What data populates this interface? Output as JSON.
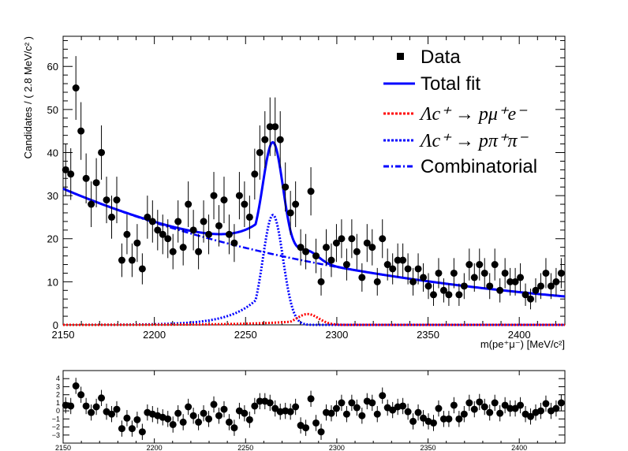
{
  "chart_data": [
    {
      "type": "scatter",
      "title": "",
      "xlabel": "m(pe⁺μ⁻) [MeV/c²]",
      "ylabel": "Candidates / ( 2.8 MeV/c² )",
      "xlim": [
        2150,
        2425
      ],
      "ylim": [
        0,
        67
      ],
      "x_ticks": [
        2150,
        2200,
        2250,
        2300,
        2350,
        2400
      ],
      "y_ticks": [
        0,
        10,
        20,
        30,
        40,
        50,
        60
      ],
      "legend": {
        "position": "top-right",
        "entries": [
          {
            "label": "Data",
            "style": "marker",
            "color": "#000000"
          },
          {
            "label": "Total fit",
            "style": "solid",
            "color": "#0000ff"
          },
          {
            "label": "Λc⁺ → pμ⁺e⁻",
            "style": "dotted",
            "color": "#ff0000"
          },
          {
            "label": "Λc⁺ → pπ⁺π⁻",
            "style": "dotted",
            "color": "#0000ff"
          },
          {
            "label": "Combinatorial",
            "style": "dashdot",
            "color": "#0000ff"
          }
        ]
      },
      "data_points": {
        "x": [
          2151.4,
          2154.2,
          2157.0,
          2159.8,
          2162.6,
          2165.4,
          2168.2,
          2171.0,
          2173.8,
          2176.6,
          2179.4,
          2182.2,
          2185.0,
          2187.8,
          2190.6,
          2193.4,
          2196.2,
          2199.0,
          2201.8,
          2204.6,
          2207.4,
          2210.2,
          2213.0,
          2215.8,
          2218.6,
          2221.4,
          2224.2,
          2227.0,
          2229.8,
          2232.6,
          2235.4,
          2238.2,
          2241.0,
          2243.8,
          2246.6,
          2249.4,
          2252.2,
          2255.0,
          2257.8,
          2260.6,
          2263.4,
          2266.2,
          2269.0,
          2271.8,
          2274.6,
          2277.4,
          2280.2,
          2283.0,
          2285.8,
          2288.6,
          2291.4,
          2294.2,
          2297.0,
          2299.8,
          2302.6,
          2305.4,
          2308.2,
          2311.0,
          2313.8,
          2316.6,
          2319.4,
          2322.2,
          2325.0,
          2327.8,
          2330.6,
          2333.4,
          2336.2,
          2339.0,
          2341.8,
          2344.6,
          2347.4,
          2350.2,
          2353.0,
          2355.8,
          2358.6,
          2361.4,
          2364.2,
          2367.0,
          2369.8,
          2372.6,
          2375.4,
          2378.2,
          2381.0,
          2383.8,
          2386.6,
          2389.4,
          2392.2,
          2395.0,
          2397.8,
          2400.6,
          2403.4,
          2406.2,
          2409.0,
          2411.8,
          2414.6,
          2417.4,
          2420.2,
          2423.0
        ],
        "y": [
          36,
          35,
          55,
          45,
          34,
          28,
          33,
          40,
          29,
          25,
          29,
          15,
          21,
          15,
          19,
          13,
          25,
          24,
          22,
          21,
          20,
          17,
          24,
          18,
          28,
          22,
          17,
          24,
          21,
          30,
          23,
          29,
          21,
          19,
          30,
          28,
          25,
          35,
          40,
          43,
          46,
          46,
          43,
          32,
          26,
          28,
          18,
          17,
          31,
          16,
          10,
          18,
          15,
          19,
          20,
          14,
          20,
          17,
          11,
          19,
          18,
          10,
          20,
          14,
          13,
          15,
          15,
          13,
          10,
          13,
          11,
          9,
          7,
          12,
          8,
          7,
          12,
          7,
          9,
          14,
          11,
          14,
          12,
          9,
          14,
          8,
          12,
          10,
          10,
          11,
          7,
          6,
          8,
          9,
          12,
          9,
          10,
          12
        ],
        "err": [
          6,
          6,
          7.4,
          6.7,
          5.8,
          5.3,
          5.7,
          6.3,
          5.4,
          5,
          5.4,
          3.9,
          4.6,
          3.9,
          4.4,
          3.6,
          5,
          4.9,
          4.7,
          4.6,
          4.5,
          4.1,
          4.9,
          4.2,
          5.3,
          4.7,
          4.1,
          4.9,
          4.6,
          5.5,
          4.8,
          5.4,
          4.6,
          4.4,
          5.5,
          5.3,
          5,
          5.9,
          6.3,
          6.6,
          6.8,
          6.8,
          6.6,
          5.7,
          5.1,
          5.3,
          4.2,
          4.1,
          5.6,
          4,
          3.2,
          4.2,
          3.9,
          4.4,
          4.5,
          3.7,
          4.5,
          4.1,
          3.3,
          4.4,
          4.2,
          3.2,
          4.5,
          3.7,
          3.6,
          3.9,
          3.9,
          3.6,
          3.2,
          3.6,
          3.3,
          3,
          2.6,
          3.5,
          2.8,
          2.6,
          3.5,
          2.6,
          3,
          3.7,
          3.3,
          3.7,
          3.5,
          3,
          3.7,
          2.8,
          3.5,
          3.2,
          3.2,
          3.3,
          2.6,
          2.4,
          2.8,
          3,
          3.5,
          3,
          3.2,
          3.5
        ]
      },
      "model": {
        "combinatorial": {
          "a0": 31.6,
          "slope": 0.0057,
          "x0": 2150
        },
        "signal_ppipi": {
          "amplitude": 25.5,
          "mean": 2265,
          "sigma": 5.5,
          "tail": 15.0
        },
        "signal_pmue": {
          "amplitude": 2.5,
          "mean": 2284,
          "sigma": 6.0,
          "tail": 25.0
        }
      }
    },
    {
      "type": "scatter",
      "title": "",
      "xlabel": "",
      "ylabel": "",
      "xlim": [
        2150,
        2425
      ],
      "ylim": [
        -4,
        5
      ],
      "x_ticks": [
        2150,
        2200,
        2250,
        2300,
        2350,
        2400
      ],
      "y_ticks": [
        -3,
        -2,
        -1,
        0,
        1,
        2,
        3,
        4
      ],
      "residuals": [
        0.7,
        0.6,
        3.1,
        2.0,
        0.6,
        -0.2,
        0.5,
        1.6,
        -0.1,
        -0.4,
        0.2,
        -2.2,
        -0.9,
        -2.2,
        -1.1,
        -2.6,
        -0.2,
        -0.4,
        -0.6,
        -0.8,
        -1.0,
        -1.7,
        -0.3,
        -1.4,
        0.5,
        -0.6,
        -1.4,
        -0.3,
        -1.0,
        0.8,
        -0.6,
        0.2,
        -1.4,
        -2.1,
        0.0,
        -0.3,
        -1.1,
        0.6,
        1.2,
        1.2,
        1.0,
        0.3,
        -0.1,
        0.0,
        -0.1,
        0.5,
        -1.8,
        -2.1,
        1.5,
        -1.5,
        -2.6,
        -0.2,
        -0.3,
        0.3,
        1.0,
        -0.4,
        1.0,
        0.4,
        -0.6,
        1.2,
        1.0,
        -0.4,
        1.9,
        0.4,
        0.1,
        0.5,
        0.6,
        -0.1,
        -1.3,
        -0.2,
        -0.9,
        -1.3,
        -1.5,
        0.3,
        -1.0,
        -1.0,
        0.7,
        -1.0,
        -0.4,
        1.0,
        0.2,
        1.1,
        0.5,
        -0.2,
        1.0,
        -0.3,
        0.7,
        0.3,
        0.3,
        0.7,
        -0.4,
        -0.7,
        -0.2,
        0.0,
        0.9,
        0.0,
        0.3,
        1.0
      ]
    }
  ]
}
